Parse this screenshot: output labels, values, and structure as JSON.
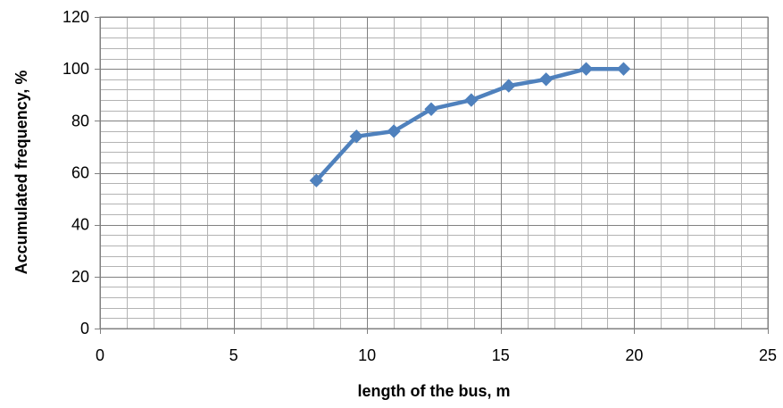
{
  "chart_data": {
    "type": "line",
    "title": "",
    "xlabel": "length of the bus, m",
    "ylabel": "Accumulated frequency, %",
    "xlim": [
      0,
      25
    ],
    "ylim": [
      0,
      120
    ],
    "x_ticks": [
      0,
      5,
      10,
      15,
      20,
      25
    ],
    "y_ticks": [
      0,
      20,
      40,
      60,
      80,
      100,
      120
    ],
    "x_tick_labels": [
      "0",
      "5",
      "10",
      "15",
      "20",
      "25"
    ],
    "y_tick_labels": [
      "0",
      "20",
      "40",
      "60",
      "80",
      "100",
      "120"
    ],
    "minor_x_step": 1,
    "minor_y_step": 4,
    "grid": true,
    "legend": "none",
    "series": [
      {
        "color": "#4f81bd",
        "marker": "diamond",
        "x": [
          8.1,
          9.6,
          11.0,
          12.4,
          13.9,
          15.3,
          16.7,
          18.2,
          19.6
        ],
        "y": [
          57,
          74,
          76,
          84.5,
          88,
          93.5,
          96,
          100,
          100
        ]
      }
    ]
  }
}
